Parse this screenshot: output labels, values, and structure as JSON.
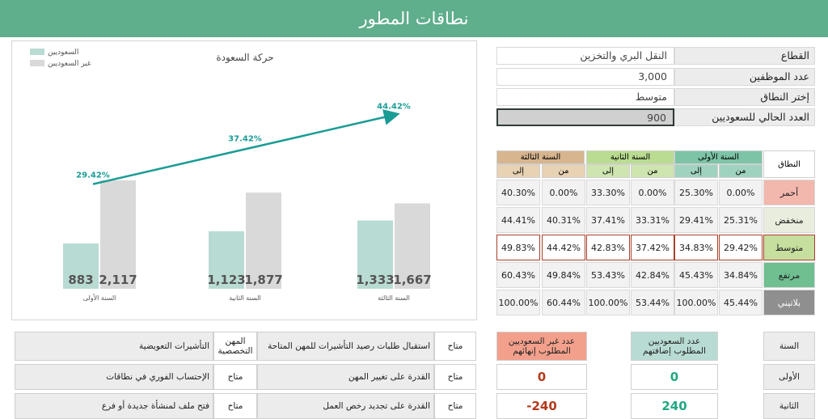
{
  "header": {
    "title": "نطاقات المطور"
  },
  "info": {
    "sector_label": "القطاع",
    "sector_value": "النقل البري والتخزين",
    "employees_label": "عدد الموظفين",
    "employees_value": "3,000",
    "range_label": "إختر النطاق",
    "range_value": "متوسط",
    "current_saudi_label": "العدد الحالي للسعوديين",
    "current_saudi_value": "900"
  },
  "chart_data": {
    "type": "bar",
    "title": "حركة السعودة",
    "categories": [
      "السنة الأولى",
      "السنة الثانية",
      "السنة الثالثة"
    ],
    "series": [
      {
        "name": "السعوديين",
        "values": [
          883,
          1123,
          1333
        ],
        "labels": [
          "883",
          "1,123",
          "1,333"
        ],
        "color": "#b8dbd3"
      },
      {
        "name": "غير السعوديين",
        "values": [
          2117,
          1877,
          1667
        ],
        "labels": [
          "2,117",
          "1,877",
          "1,667"
        ],
        "color": "#d9d9d9"
      }
    ],
    "trend": {
      "values": [
        29.42,
        37.42,
        44.42
      ],
      "labels": [
        "29.42%",
        "37.42%",
        "44.42%"
      ],
      "color": "#1a9c95"
    },
    "ylim": [
      0,
      3000
    ],
    "legend": "top-left",
    "grid": false
  },
  "ranges_table": {
    "row_header": "النطاق",
    "years": [
      "السنة الأولى",
      "السنة الثانية",
      "السنة الثالثة"
    ],
    "from_label": "من",
    "to_label": "إلى",
    "rows": [
      {
        "name": "أحمر",
        "values": [
          "0.00%",
          "25.30%",
          "0.00%",
          "33.30%",
          "0.00%",
          "40.30%"
        ]
      },
      {
        "name": "منخفض",
        "values": [
          "25.31%",
          "29.41%",
          "33.31%",
          "37.41%",
          "40.31%",
          "44.41%"
        ]
      },
      {
        "name": "متوسط",
        "values": [
          "29.42%",
          "34.83%",
          "37.42%",
          "42.83%",
          "44.42%",
          "49.83%"
        ]
      },
      {
        "name": "مرتفع",
        "values": [
          "34.84%",
          "45.43%",
          "42.84%",
          "53.43%",
          "49.84%",
          "60.43%"
        ]
      },
      {
        "name": "بلاتيني",
        "values": [
          "45.44%",
          "100.00%",
          "53.44%",
          "100.00%",
          "60.44%",
          "100.00%"
        ]
      }
    ]
  },
  "requirements": {
    "year_header": "السنة",
    "add_header": "عدد السعوديين المطلوب إضافتهم",
    "remove_header": "عدد غير السعوديين المطلوب إنهائهم",
    "rows": [
      {
        "year": "الأولى",
        "add": "0",
        "remove": "0"
      },
      {
        "year": "الثانية",
        "add": "240",
        "remove": "-240"
      }
    ]
  },
  "services": {
    "available": "متاح",
    "rows": [
      {
        "service1": "استقبال طلبات رصيد التأشيرات للمهن المتاحة",
        "service2": "التأشيرات التعويضية",
        "status2": "المهن التخصصية"
      },
      {
        "service1": "القدرة على تغيير المهن",
        "service2": "الإحتساب الفوري في نطاقات",
        "status2": "متاح"
      },
      {
        "service1": "القدرة على تجديد رخص العمل",
        "service2": "فتح ملف لمنشأة جديدة أو فرع",
        "status2": "متاح"
      }
    ]
  }
}
